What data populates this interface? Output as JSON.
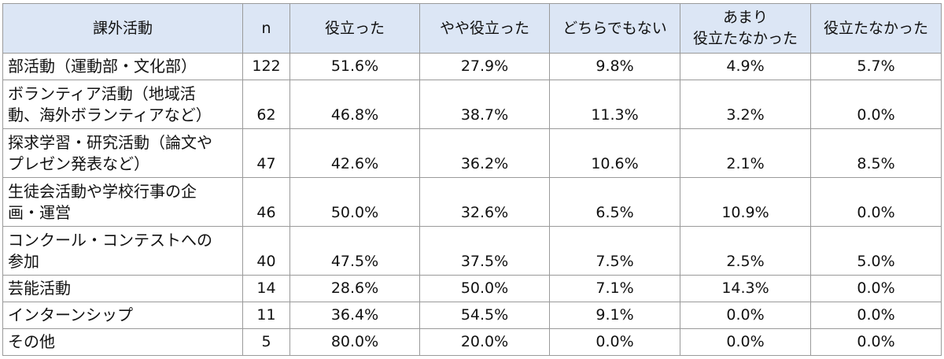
{
  "table": {
    "header": [
      "課外活動",
      "n",
      "役立った",
      "やや役立った",
      "どちらでもない",
      "あまり\n役立たなかった",
      "役立たなかった"
    ],
    "rows": [
      [
        "部活動（運動部・文化部）",
        122,
        "51.6%",
        "27.9%",
        "9.8%",
        "4.9%",
        "5.7%"
      ],
      [
        "ボランティア活動（地域活\n動、海外ボランティアなど）",
        62,
        "46.8%",
        "38.7%",
        "11.3%",
        "3.2%",
        "0.0%"
      ],
      [
        "探求学習・研究活動（論文や\nプレゼン発表など）",
        47,
        "42.6%",
        "36.2%",
        "10.6%",
        "2.1%",
        "8.5%"
      ],
      [
        "生徒会活動や学校行事の企\n画・運営",
        46,
        "50.0%",
        "32.6%",
        "6.5%",
        "10.9%",
        "0.0%"
      ],
      [
        "コンクール・コンテストへの\n参加",
        40,
        "47.5%",
        "37.5%",
        "7.5%",
        "2.5%",
        "5.0%"
      ],
      [
        "芸能活動",
        14,
        "28.6%",
        "50.0%",
        "7.1%",
        "14.3%",
        "0.0%"
      ],
      [
        "インターンシップ",
        11,
        "36.4%",
        "54.5%",
        "9.1%",
        "0.0%",
        "0.0%"
      ],
      [
        "その他",
        5,
        "80.0%",
        "20.0%",
        "0.0%",
        "0.0%",
        "0.0%"
      ]
    ]
  }
}
